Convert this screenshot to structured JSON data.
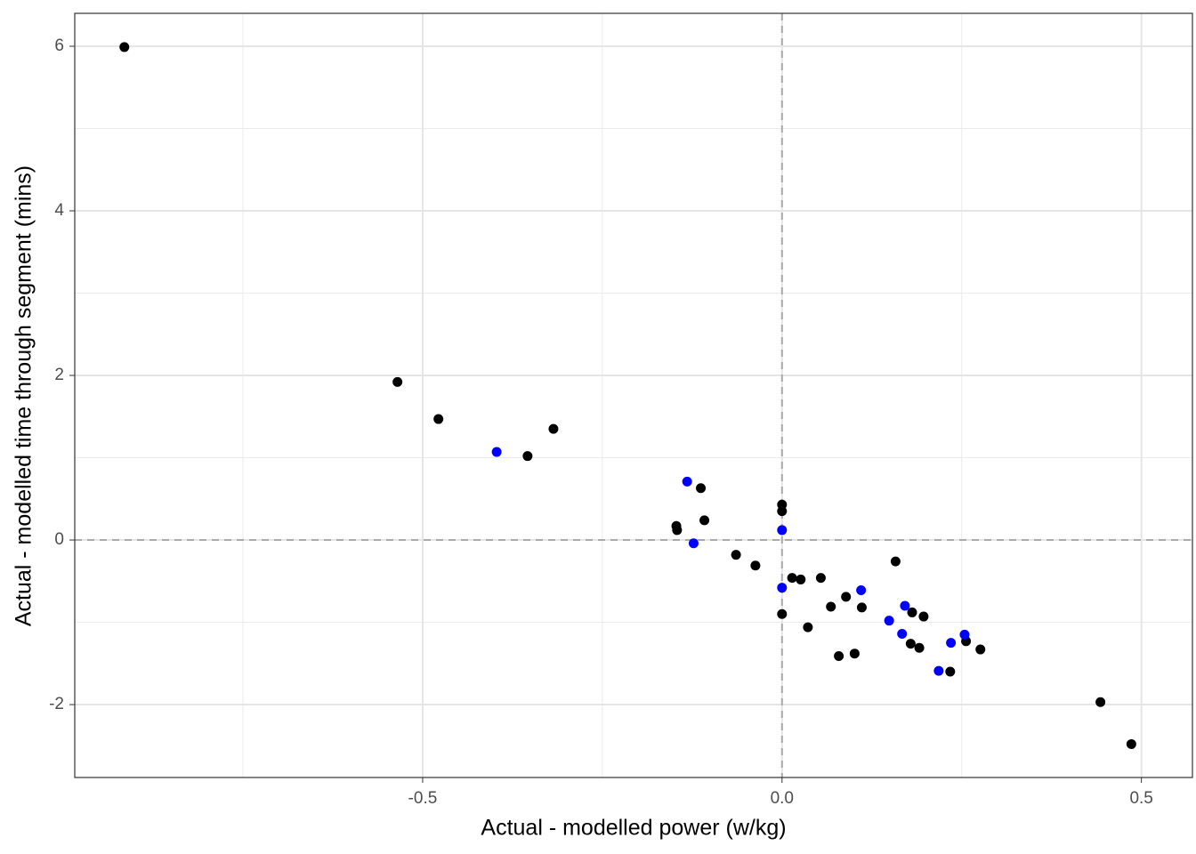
{
  "chart_data": {
    "type": "scatter",
    "xlabel": "Actual - modelled power (w/kg)",
    "ylabel": "Actual - modelled time through segment (mins)",
    "xlim": [
      -0.984,
      0.571
    ],
    "ylim": [
      -2.886,
      6.4
    ],
    "xticks": [
      -0.5,
      {
        "value": 0,
        "label": "0.0"
      },
      0.5
    ],
    "yticks": [
      -2,
      0,
      2,
      4,
      6
    ],
    "x_minor_grid": [
      -0.75,
      -0.25,
      0.25
    ],
    "y_minor_grid": [
      -1,
      1,
      3,
      5
    ],
    "grid": true,
    "hline": 0,
    "vline": 0,
    "series": [
      {
        "color": "#000000",
        "x": [
          -0.915,
          -0.535,
          -0.478,
          -0.318,
          -0.354,
          -0.113,
          -0.147,
          -0.146,
          -0.108,
          0.0,
          0.0,
          -0.064,
          -0.037,
          0.014,
          0.026,
          0.054,
          0.158,
          0.089,
          0.068,
          0.111,
          0.0,
          0.036,
          0.181,
          0.197,
          0.079,
          0.101,
          0.179,
          0.191,
          0.256,
          0.276,
          0.234,
          0.443,
          0.486
        ],
        "values": [
          5.99,
          1.92,
          1.47,
          1.35,
          1.02,
          0.63,
          0.17,
          0.12,
          0.24,
          0.43,
          0.35,
          -0.18,
          -0.31,
          -0.46,
          -0.48,
          -0.46,
          -0.26,
          -0.69,
          -0.81,
          -0.82,
          -0.9,
          -1.06,
          -0.88,
          -0.93,
          -1.41,
          -1.38,
          -1.26,
          -1.31,
          -1.23,
          -1.33,
          -1.6,
          -1.97,
          -2.48
        ]
      },
      {
        "color": "#0000ff",
        "x": [
          -0.397,
          -0.132,
          -0.123,
          0.0,
          0.0,
          0.11,
          0.171,
          0.149,
          0.167,
          0.235,
          0.254,
          0.218
        ],
        "values": [
          1.07,
          0.71,
          -0.04,
          0.12,
          -0.58,
          -0.61,
          -0.8,
          -0.98,
          -1.14,
          -1.25,
          -1.15,
          -1.59
        ]
      }
    ]
  }
}
